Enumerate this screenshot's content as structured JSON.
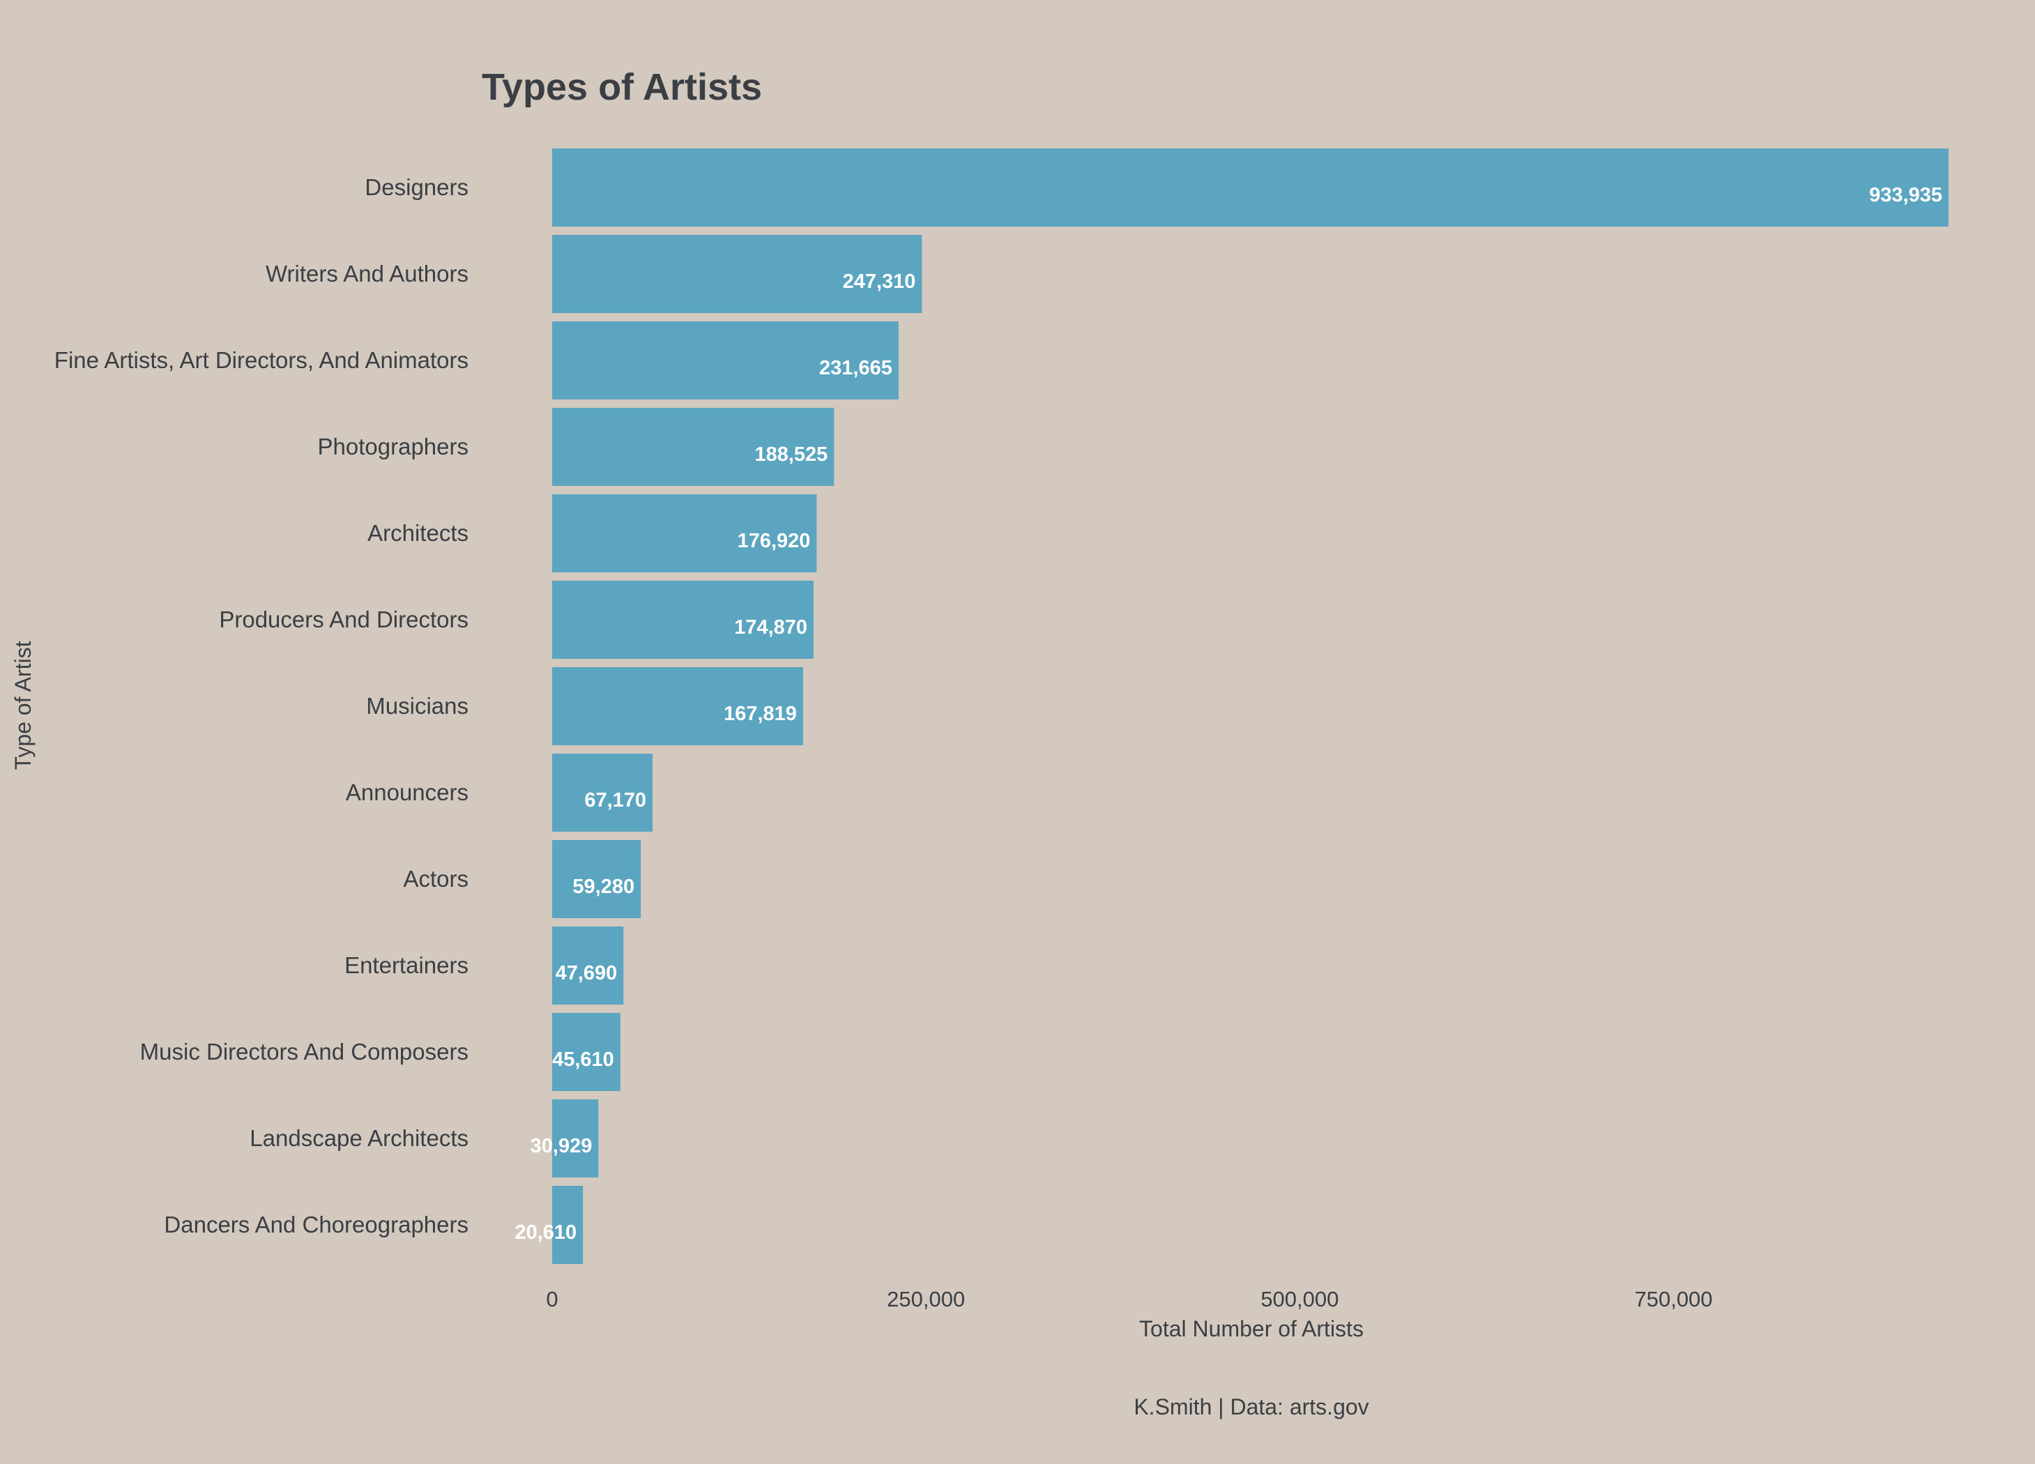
{
  "chart_data": {
    "type": "bar",
    "orientation": "horizontal",
    "title": "Types of Artists",
    "xlabel": "Total Number of Artists",
    "ylabel": "Type of Artist",
    "caption": "K.Smith | Data: arts.gov",
    "xlim": [
      0,
      933935
    ],
    "xticks": [
      0,
      250000,
      500000,
      750000
    ],
    "xtick_labels": [
      "0",
      "250,000",
      "500,000",
      "750,000"
    ],
    "grid": false,
    "legend": "none",
    "bar_color": "#5ba5c0",
    "background_color": "#d3c9bf",
    "text_color": "#3b3f44",
    "value_label_color": "#ffffff",
    "categories": [
      "Designers",
      "Writers And Authors",
      "Fine Artists, Art Directors, And Animators",
      "Photographers",
      "Architects",
      "Producers And Directors",
      "Musicians",
      "Announcers",
      "Actors",
      "Entertainers",
      "Music Directors And Composers",
      "Landscape Architects",
      "Dancers And Choreographers"
    ],
    "values": [
      933935,
      247310,
      231665,
      188525,
      176920,
      174870,
      167819,
      67170,
      59280,
      47690,
      45610,
      30929,
      20610
    ],
    "value_labels": [
      "933,935",
      "247,310",
      "231,665",
      "188,525",
      "176,920",
      "174,870",
      "167,819",
      "67,170",
      "59,280",
      "47,690",
      "45,610",
      "30,929",
      "20,610"
    ]
  }
}
